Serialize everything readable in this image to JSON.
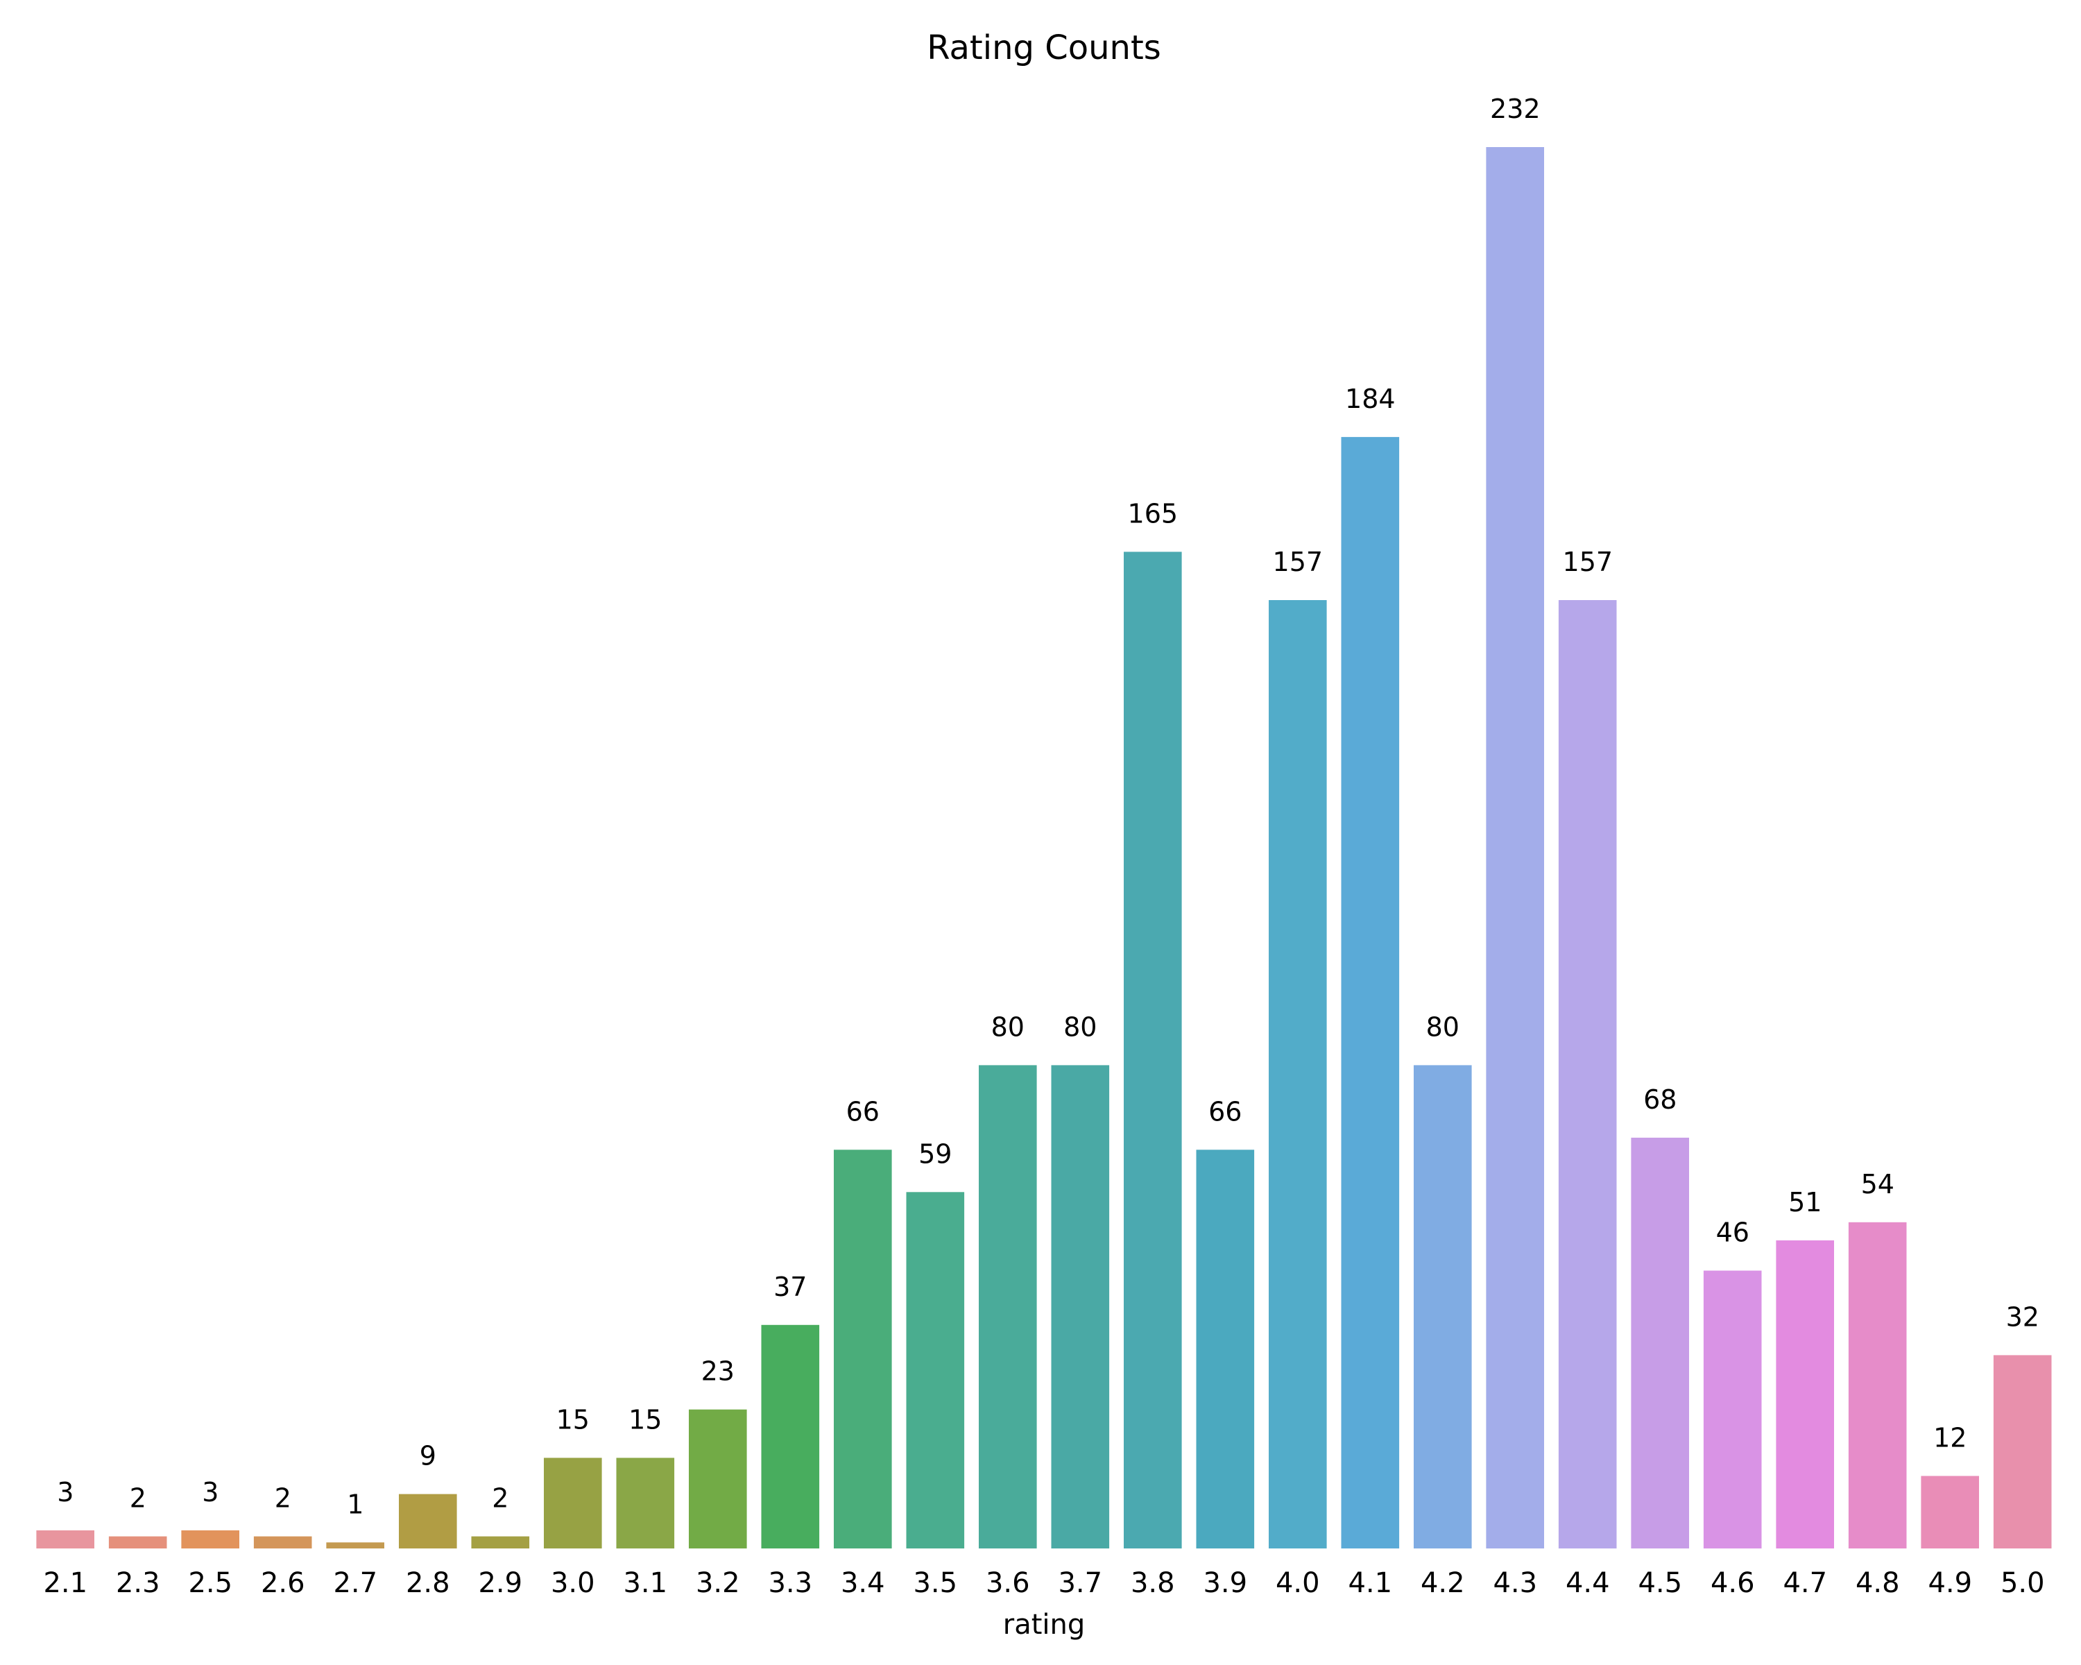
{
  "chart_data": {
    "type": "bar",
    "title": "Rating Counts",
    "xlabel": "rating",
    "ylabel": "",
    "ylim": [
      0,
      232
    ],
    "grid": false,
    "legend": "none",
    "categories": [
      "2.1",
      "2.3",
      "2.5",
      "2.6",
      "2.7",
      "2.8",
      "2.9",
      "3.0",
      "3.1",
      "3.2",
      "3.3",
      "3.4",
      "3.5",
      "3.6",
      "3.7",
      "3.8",
      "3.9",
      "4.0",
      "4.1",
      "4.2",
      "4.3",
      "4.4",
      "4.5",
      "4.6",
      "4.7",
      "4.8",
      "4.9",
      "5.0"
    ],
    "values": [
      3,
      2,
      3,
      2,
      1,
      9,
      2,
      15,
      15,
      23,
      37,
      66,
      59,
      80,
      80,
      165,
      66,
      157,
      184,
      80,
      232,
      157,
      68,
      46,
      51,
      54,
      12,
      32
    ],
    "data_labels": [
      "3",
      "2",
      "3",
      "2",
      "1",
      "9",
      "2",
      "15",
      "15",
      "23",
      "37",
      "66",
      "59",
      "80",
      "80",
      "165",
      "66",
      "157",
      "184",
      "80",
      "232",
      "157",
      "68",
      "46",
      "51",
      "54",
      "12",
      "32"
    ],
    "colors": [
      "#e8959e",
      "#e5907b",
      "#e2935c",
      "#d4955a",
      "#c49a50",
      "#b19d44",
      "#a4a043",
      "#97a244",
      "#8aa747",
      "#72ab46",
      "#48ad5e",
      "#4aad7a",
      "#4aad8f",
      "#4aab9a",
      "#4aa9a5",
      "#4ba9b0",
      "#4ba9bf",
      "#52acc9",
      "#5aaad7",
      "#80ace3",
      "#a3adea",
      "#b6a7ea",
      "#c79de7",
      "#d993e5",
      "#e38be0",
      "#e68cc9",
      "#e98db7",
      "#e890ac"
    ]
  }
}
